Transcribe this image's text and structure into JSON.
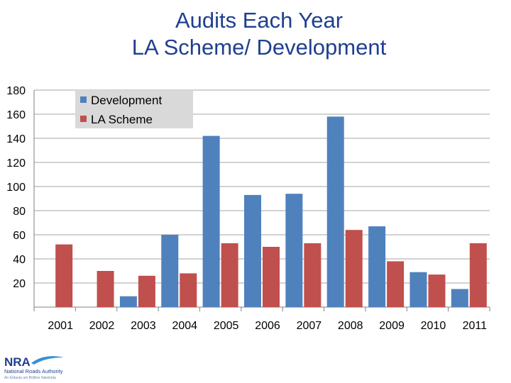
{
  "chart_data": {
    "type": "bar",
    "title": "Audits Each Year",
    "subtitle": "LA Scheme/ Development",
    "categories": [
      "2001",
      "2002",
      "2003",
      "2004",
      "2005",
      "2006",
      "2007",
      "2008",
      "2009",
      "2010",
      "2011"
    ],
    "series": [
      {
        "name": "Development",
        "color": "#4f81bd",
        "values": [
          0,
          0,
          9,
          60,
          142,
          93,
          94,
          158,
          67,
          29,
          15
        ]
      },
      {
        "name": "LA Scheme",
        "color": "#c0504d",
        "values": [
          52,
          30,
          26,
          28,
          53,
          50,
          53,
          64,
          38,
          27,
          53
        ]
      }
    ],
    "ylim": [
      0,
      180
    ],
    "yticks": [
      20,
      40,
      60,
      80,
      100,
      120,
      140,
      160,
      180
    ],
    "grid": true,
    "legend": "top-left"
  },
  "logo": {
    "mark": "NRA",
    "name": "National Roads Authority",
    "tagline": "An tÚdarás um Bóithre Náisiúnta"
  }
}
